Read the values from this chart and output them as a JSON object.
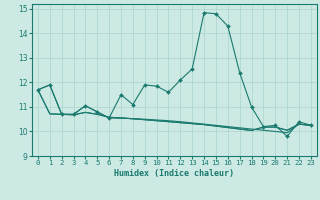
{
  "xlabel": "Humidex (Indice chaleur)",
  "ylabel": "",
  "xlim": [
    -0.5,
    23.5
  ],
  "ylim": [
    9,
    15.2
  ],
  "yticks": [
    9,
    10,
    11,
    12,
    13,
    14,
    15
  ],
  "xticks": [
    0,
    1,
    2,
    3,
    4,
    5,
    6,
    7,
    8,
    9,
    10,
    11,
    12,
    13,
    14,
    15,
    16,
    17,
    18,
    19,
    20,
    21,
    22,
    23
  ],
  "bg_color": "#cce9e4",
  "grid_color": "#aad4ce",
  "line_color": "#1a7a6e",
  "series_main": [
    11.7,
    11.9,
    10.7,
    10.7,
    11.05,
    10.8,
    10.55,
    11.5,
    11.1,
    11.9,
    11.85,
    11.6,
    12.1,
    12.55,
    14.85,
    14.8,
    14.3,
    12.4,
    11.0,
    10.2,
    10.25,
    9.8,
    10.4,
    10.25
  ],
  "series_flat": [
    [
      11.7,
      11.9,
      10.7,
      10.7,
      11.05,
      10.8,
      10.55,
      10.55,
      10.52,
      10.5,
      10.47,
      10.44,
      10.4,
      10.35,
      10.3,
      10.25,
      10.2,
      10.15,
      10.1,
      10.05,
      10.0,
      9.95,
      10.3,
      10.25
    ],
    [
      11.7,
      10.72,
      10.7,
      10.68,
      10.78,
      10.7,
      10.58,
      10.55,
      10.52,
      10.48,
      10.44,
      10.4,
      10.36,
      10.32,
      10.28,
      10.22,
      10.16,
      10.1,
      10.04,
      10.18,
      10.18,
      10.05,
      10.3,
      10.25
    ],
    [
      11.7,
      10.72,
      10.7,
      10.68,
      10.78,
      10.7,
      10.58,
      10.55,
      10.52,
      10.48,
      10.44,
      10.4,
      10.36,
      10.32,
      10.28,
      10.22,
      10.16,
      10.1,
      10.04,
      10.18,
      10.18,
      10.05,
      10.3,
      10.25
    ]
  ]
}
